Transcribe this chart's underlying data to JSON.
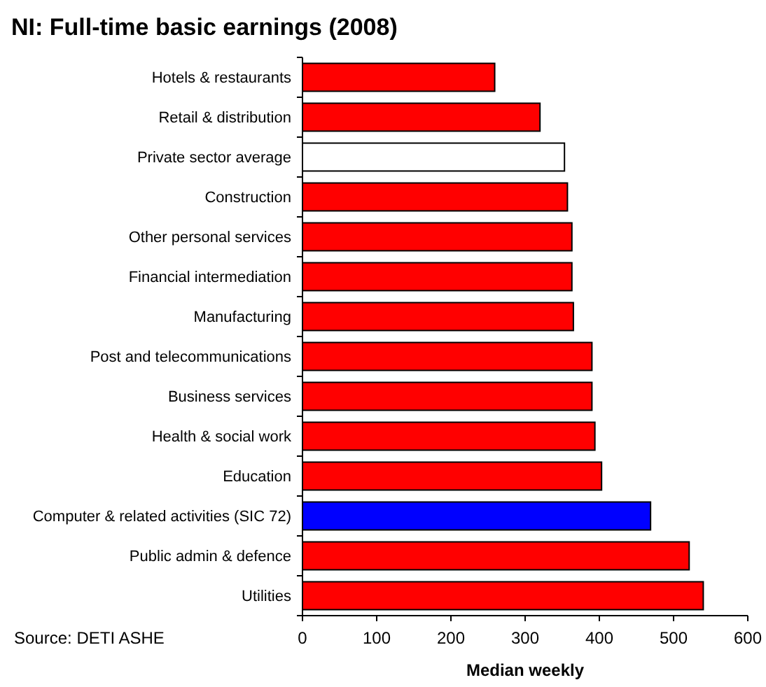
{
  "chart_data": {
    "type": "bar",
    "orientation": "horizontal",
    "title": "NI: Full-time basic earnings (2008)",
    "xlabel": "Median weekly",
    "categories": [
      "Hotels & restaurants",
      "Retail & distribution",
      "Private sector average",
      "Construction",
      "Other personal services",
      "Financial intermediation",
      "Manufacturing",
      "Post and telecommunications",
      "Business services",
      "Health & social work",
      "Education",
      "Computer & related activities (SIC 72)",
      "Public admin & defence",
      "Utilities"
    ],
    "values": [
      259,
      320,
      353,
      357,
      363,
      363,
      365,
      390,
      390,
      394,
      403,
      469,
      521,
      540
    ],
    "colors": [
      "#ff0000",
      "#ff0000",
      "#ffffff",
      "#ff0000",
      "#ff0000",
      "#ff0000",
      "#ff0000",
      "#ff0000",
      "#ff0000",
      "#ff0000",
      "#ff0000",
      "#0000ff",
      "#ff0000",
      "#ff0000"
    ],
    "xlim": [
      0,
      600
    ],
    "xticks": [
      0,
      100,
      200,
      300,
      400,
      500,
      600
    ],
    "grid": false,
    "annotations": [
      "Source: DETI ASHE"
    ]
  }
}
